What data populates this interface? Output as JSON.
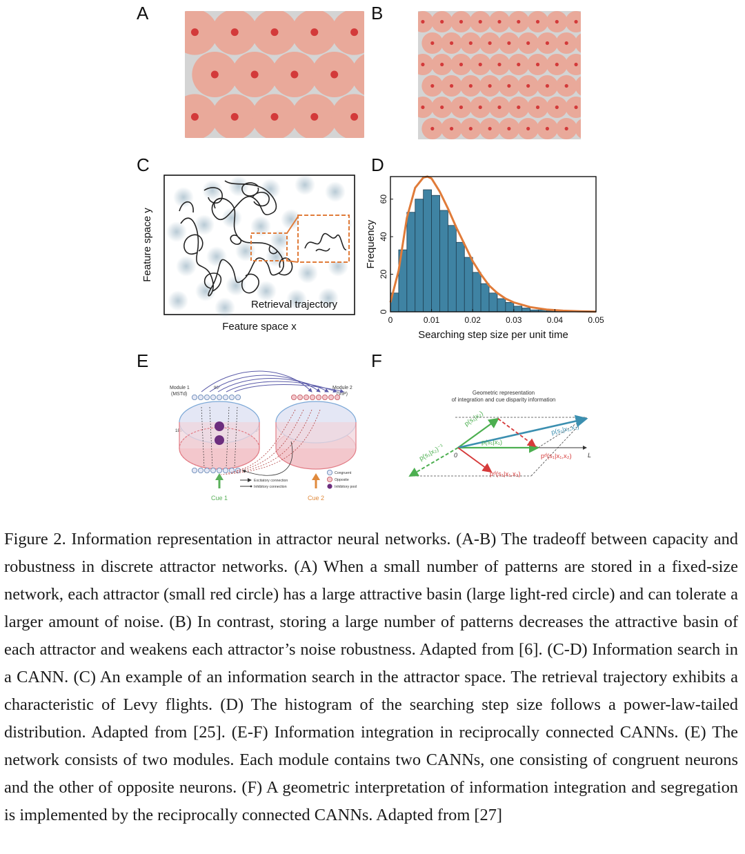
{
  "panels": {
    "A": {
      "label": "A",
      "grid": {
        "cols": 5,
        "rows": 3
      }
    },
    "B": {
      "label": "B",
      "grid": {
        "cols": 9,
        "rows": 6
      }
    },
    "C": {
      "label": "C",
      "xlabel": "Feature space x",
      "ylabel": "Feature space y",
      "annotation": "Retrieval trajectory"
    },
    "D": {
      "label": "D"
    },
    "E": {
      "label": "E",
      "module1": [
        "Module 1",
        "(MSTd)"
      ],
      "module2": [
        "Module 2",
        "(VIP)"
      ],
      "angle_top": "90°",
      "angle_left": "180°",
      "angle_right": "0°",
      "legend_lines": [
        "Excitatory connection",
        "Inhibitory connection"
      ],
      "legend_markers": [
        "Congruent",
        "Opposite",
        "Inhibitory pool"
      ],
      "cue1": "Cue 1",
      "cue2": "Cue 2"
    },
    "F": {
      "label": "F",
      "title_lines": [
        "Geometric representation",
        "of integration and cue disparity information"
      ],
      "vec_x2": "p(s₁|x₂)",
      "vec_x2_inv": "p(s₁|x₂)⁻¹",
      "vec_x1": "p(s₁|x₁)",
      "vec_int": "p(s₁|x₁,x₂)",
      "vec_dis_axis": "pᵈ(s₁|x₁,x₂)",
      "vec_dis": "pᵈ(s₁|x₁,x₂)",
      "origin": "0",
      "axis": "L"
    }
  },
  "chart_data": {
    "type": "bar",
    "xlabel": "Searching step size per unit time",
    "ylabel": "Frequency",
    "xlim": [
      0,
      0.05
    ],
    "ylim": [
      0,
      72
    ],
    "xticks": [
      "0",
      "0.01",
      "0.02",
      "0.03",
      "0.04",
      "0.05"
    ],
    "yticks": [
      "0",
      "20",
      "40",
      "60"
    ],
    "bin_width": 0.002,
    "bin_starts": [
      0.0,
      0.002,
      0.004,
      0.006,
      0.008,
      0.01,
      0.012,
      0.014,
      0.016,
      0.018,
      0.02,
      0.022,
      0.024,
      0.026,
      0.028,
      0.03,
      0.032,
      0.034,
      0.036,
      0.038,
      0.04,
      0.042,
      0.044,
      0.046,
      0.048
    ],
    "values": [
      10,
      33,
      53,
      60,
      65,
      62,
      54,
      46,
      37,
      29,
      21,
      15,
      10,
      7,
      5,
      3,
      2,
      1,
      1,
      0.5,
      0.5,
      0,
      0,
      0,
      0
    ],
    "fit_curve": {
      "x": [
        0,
        0.002,
        0.004,
        0.006,
        0.008,
        0.009,
        0.01,
        0.012,
        0.014,
        0.016,
        0.018,
        0.02,
        0.022,
        0.024,
        0.026,
        0.028,
        0.03,
        0.034,
        0.038,
        0.042,
        0.046,
        0.05
      ],
      "y": [
        5,
        22,
        50,
        66,
        71.5,
        72,
        71,
        64,
        55,
        45,
        36,
        27,
        20,
        14,
        10,
        7,
        5,
        2.5,
        1.2,
        0.6,
        0.3,
        0.1
      ]
    },
    "colors": {
      "bar": "#3f83a3",
      "fit": "#e07b39"
    }
  },
  "caption": "Figure 2. Information representation in attractor neural networks. (A-B) The tradeoff between capacity and robustness in discrete attractor networks. (A) When a small number of patterns are stored in a fixed-size network, each attractor (small red circle) has a large attractive basin (large light-red circle) and can tolerate a larger amount of noise. (B) In contrast, storing a large number of patterns decreases the attractive basin of each attractor and weakens each attractor’s noise robustness. Adapted from [6]. (C-D) Information search in a CANN. (C) An example of an information search in the attractor space. The retrieval trajectory exhibits a characteristic of Levy flights. (D) The histogram of the searching step size follows a power-law-tailed distribution. Adapted from [25]. (E-F) Information integration in reciprocally connected CANNs. (E) The network consists of two modules. Each module contains two CANNs, one consisting of congruent neurons and the other of opposite neurons. (F) A geometric interpretation of information integration and segregation is implemented by the reciprocally connected CANNs. Adapted from [27]"
}
